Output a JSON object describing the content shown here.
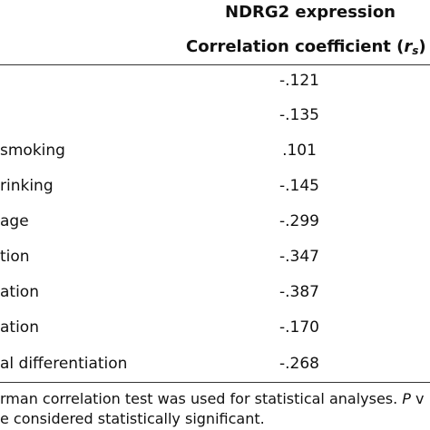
{
  "header": {
    "group_title": "NDRG2 expression",
    "column_title": "Correlation coefficient (",
    "column_symbol": "r",
    "column_subscript": "s",
    "column_close": ")"
  },
  "rows": [
    {
      "label": "",
      "value": "-.121"
    },
    {
      "label": "",
      "value": "-.135"
    },
    {
      "label": "smoking",
      "value": ".101"
    },
    {
      "label": "rinking",
      "value": "-.145"
    },
    {
      "label": "age",
      "value": "-.299"
    },
    {
      "label": "tion",
      "value": "-.347"
    },
    {
      "label": "ation",
      "value": "-.387"
    },
    {
      "label": "ation",
      "value": "-.170"
    },
    {
      "label": "al differentiation",
      "value": "-.268"
    }
  ],
  "footnote": {
    "line1_text": "rman correlation test was used for statistical analyses. ",
    "line1_italic": "P",
    "line1_tail": " v",
    "line2": "e considered statistically significant."
  }
}
